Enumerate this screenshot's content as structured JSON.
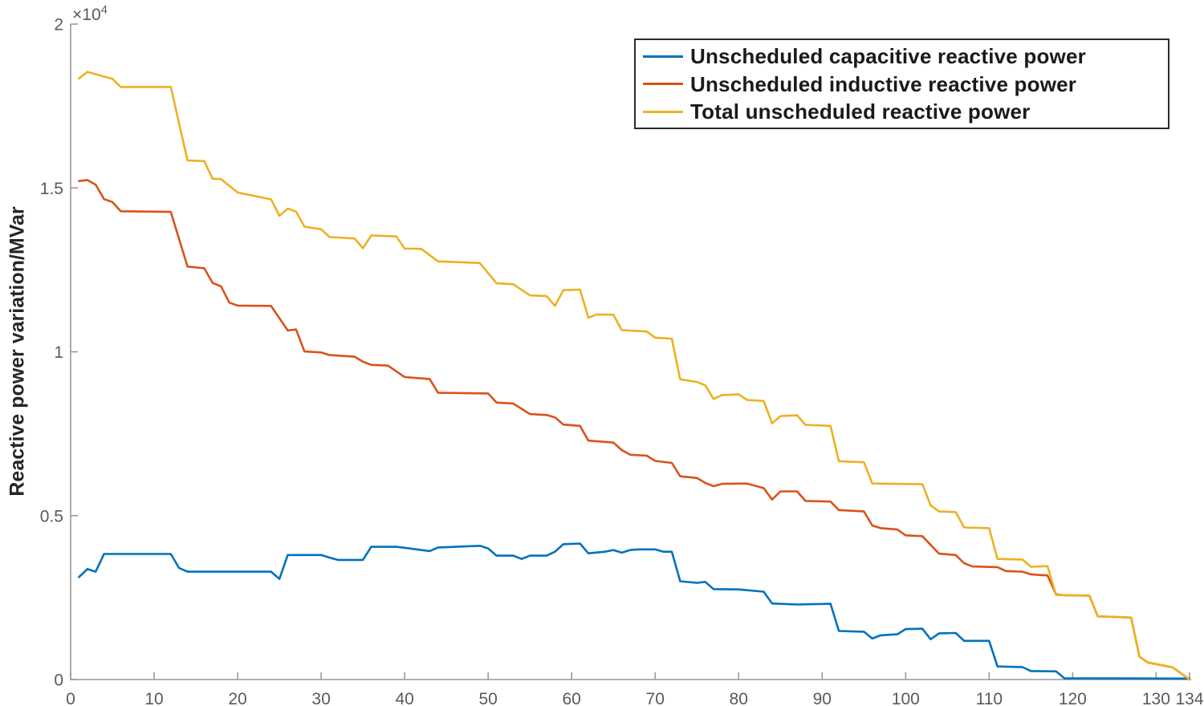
{
  "figure": {
    "background": "#ffffff",
    "axis_color": "#999999",
    "tick_label_color": "#5a5a5a"
  },
  "axes": {
    "x": {
      "min": 0,
      "max": 134,
      "ticks": [
        {
          "v": 0,
          "label": "0"
        },
        {
          "v": 10,
          "label": "10"
        },
        {
          "v": 20,
          "label": "20"
        },
        {
          "v": 30,
          "label": "30"
        },
        {
          "v": 40,
          "label": "40"
        },
        {
          "v": 50,
          "label": "50"
        },
        {
          "v": 60,
          "label": "60"
        },
        {
          "v": 70,
          "label": "70"
        },
        {
          "v": 80,
          "label": "80"
        },
        {
          "v": 90,
          "label": "90"
        },
        {
          "v": 100,
          "label": "100"
        },
        {
          "v": 110,
          "label": "110"
        },
        {
          "v": 120,
          "label": "120"
        },
        {
          "v": 130,
          "label": "130"
        },
        {
          "v": 134,
          "label": "134"
        }
      ]
    },
    "y": {
      "min": 0,
      "max": 20000,
      "ticks": [
        {
          "v": 0,
          "label": "0"
        },
        {
          "v": 5000,
          "label": "0.5"
        },
        {
          "v": 10000,
          "label": "1"
        },
        {
          "v": 15000,
          "label": "1.5"
        },
        {
          "v": 20000,
          "label": "2"
        }
      ],
      "exponent_base": "×10",
      "exponent_power": "4"
    }
  },
  "legend": {
    "position": "northeast-inside",
    "entries": [
      {
        "label": "Unscheduled capacitive reactive power",
        "color": "#0072BD"
      },
      {
        "label": "Unscheduled inductive reactive power",
        "color": "#D95319"
      },
      {
        "label": "Total unscheduled reactive power",
        "color": "#EDB120"
      }
    ]
  },
  "chart_data": {
    "type": "line",
    "title": "",
    "xlabel": "",
    "ylabel": "Reactive power variation/MVar",
    "y_unit": "MVar",
    "y_axis_display": "values divided by 10^4",
    "xlim": [
      0,
      134
    ],
    "ylim": [
      0,
      20000
    ],
    "grid": false,
    "legend_position": "northeast inside",
    "series": [
      {
        "name": "Unscheduled capacitive reactive power",
        "color": "#0072BD",
        "points": [
          [
            1,
            3125
          ],
          [
            2,
            3370
          ],
          [
            3,
            3290
          ],
          [
            4,
            3830
          ],
          [
            12,
            3830
          ],
          [
            13,
            3400
          ],
          [
            14,
            3290
          ],
          [
            24,
            3290
          ],
          [
            25,
            3070
          ],
          [
            26,
            3800
          ],
          [
            30,
            3800
          ],
          [
            31,
            3720
          ],
          [
            32,
            3650
          ],
          [
            35,
            3650
          ],
          [
            36,
            4050
          ],
          [
            39,
            4050
          ],
          [
            40,
            4020
          ],
          [
            43,
            3920
          ],
          [
            44,
            4030
          ],
          [
            49,
            4080
          ],
          [
            50,
            4000
          ],
          [
            51,
            3780
          ],
          [
            53,
            3780
          ],
          [
            54,
            3680
          ],
          [
            55,
            3780
          ],
          [
            57,
            3780
          ],
          [
            58,
            3900
          ],
          [
            59,
            4130
          ],
          [
            61,
            4150
          ],
          [
            62,
            3850
          ],
          [
            64,
            3900
          ],
          [
            65,
            3950
          ],
          [
            66,
            3870
          ],
          [
            67,
            3950
          ],
          [
            68,
            3970
          ],
          [
            70,
            3970
          ],
          [
            71,
            3900
          ],
          [
            72,
            3900
          ],
          [
            73,
            3000
          ],
          [
            75,
            2950
          ],
          [
            76,
            2980
          ],
          [
            77,
            2760
          ],
          [
            80,
            2750
          ],
          [
            83,
            2680
          ],
          [
            84,
            2320
          ],
          [
            87,
            2290
          ],
          [
            91,
            2310
          ],
          [
            92,
            1480
          ],
          [
            95,
            1460
          ],
          [
            96,
            1250
          ],
          [
            97,
            1350
          ],
          [
            99,
            1380
          ],
          [
            100,
            1540
          ],
          [
            102,
            1550
          ],
          [
            103,
            1230
          ],
          [
            104,
            1410
          ],
          [
            106,
            1420
          ],
          [
            107,
            1180
          ],
          [
            110,
            1180
          ],
          [
            111,
            400
          ],
          [
            114,
            380
          ],
          [
            115,
            260
          ],
          [
            118,
            250
          ],
          [
            119,
            40
          ],
          [
            134,
            30
          ]
        ]
      },
      {
        "name": "Unscheduled inductive reactive power",
        "color": "#D95319",
        "points": [
          [
            1,
            15210
          ],
          [
            2,
            15240
          ],
          [
            3,
            15100
          ],
          [
            4,
            14660
          ],
          [
            5,
            14570
          ],
          [
            6,
            14290
          ],
          [
            12,
            14270
          ],
          [
            14,
            12600
          ],
          [
            16,
            12550
          ],
          [
            17,
            12100
          ],
          [
            18,
            12000
          ],
          [
            19,
            11500
          ],
          [
            20,
            11410
          ],
          [
            24,
            11400
          ],
          [
            26,
            10650
          ],
          [
            27,
            10680
          ],
          [
            28,
            10010
          ],
          [
            30,
            9980
          ],
          [
            31,
            9900
          ],
          [
            34,
            9850
          ],
          [
            35,
            9700
          ],
          [
            36,
            9600
          ],
          [
            38,
            9580
          ],
          [
            40,
            9230
          ],
          [
            43,
            9170
          ],
          [
            44,
            8750
          ],
          [
            50,
            8730
          ],
          [
            51,
            8450
          ],
          [
            53,
            8420
          ],
          [
            55,
            8100
          ],
          [
            57,
            8070
          ],
          [
            58,
            8000
          ],
          [
            59,
            7780
          ],
          [
            61,
            7740
          ],
          [
            62,
            7290
          ],
          [
            65,
            7230
          ],
          [
            66,
            7000
          ],
          [
            67,
            6860
          ],
          [
            69,
            6830
          ],
          [
            70,
            6670
          ],
          [
            72,
            6610
          ],
          [
            73,
            6200
          ],
          [
            75,
            6150
          ],
          [
            76,
            6000
          ],
          [
            77,
            5900
          ],
          [
            78,
            5970
          ],
          [
            81,
            5980
          ],
          [
            83,
            5840
          ],
          [
            84,
            5490
          ],
          [
            85,
            5740
          ],
          [
            87,
            5740
          ],
          [
            88,
            5450
          ],
          [
            91,
            5430
          ],
          [
            92,
            5170
          ],
          [
            95,
            5130
          ],
          [
            96,
            4700
          ],
          [
            97,
            4620
          ],
          [
            99,
            4580
          ],
          [
            100,
            4400
          ],
          [
            102,
            4375
          ],
          [
            104,
            3840
          ],
          [
            106,
            3800
          ],
          [
            107,
            3550
          ],
          [
            108,
            3450
          ],
          [
            111,
            3430
          ],
          [
            112,
            3310
          ],
          [
            114,
            3290
          ],
          [
            115,
            3210
          ],
          [
            117,
            3175
          ],
          [
            118,
            2600
          ],
          [
            119,
            2570
          ],
          [
            122,
            2560
          ],
          [
            123,
            1930
          ],
          [
            127,
            1890
          ],
          [
            128,
            700
          ],
          [
            129,
            520
          ],
          [
            131,
            420
          ],
          [
            132,
            370
          ],
          [
            134,
            0
          ]
        ]
      },
      {
        "name": "Total unscheduled reactive power",
        "color": "#EDB120",
        "points": [
          [
            1,
            18340
          ],
          [
            2,
            18540
          ],
          [
            4,
            18400
          ],
          [
            5,
            18330
          ],
          [
            6,
            18080
          ],
          [
            12,
            18080
          ],
          [
            14,
            15840
          ],
          [
            16,
            15820
          ],
          [
            17,
            15280
          ],
          [
            18,
            15270
          ],
          [
            20,
            14860
          ],
          [
            24,
            14650
          ],
          [
            25,
            14150
          ],
          [
            26,
            14370
          ],
          [
            27,
            14280
          ],
          [
            28,
            13820
          ],
          [
            30,
            13740
          ],
          [
            31,
            13500
          ],
          [
            34,
            13460
          ],
          [
            35,
            13160
          ],
          [
            36,
            13550
          ],
          [
            39,
            13520
          ],
          [
            40,
            13150
          ],
          [
            42,
            13140
          ],
          [
            44,
            12760
          ],
          [
            49,
            12710
          ],
          [
            51,
            12090
          ],
          [
            53,
            12060
          ],
          [
            55,
            11720
          ],
          [
            57,
            11700
          ],
          [
            58,
            11400
          ],
          [
            59,
            11880
          ],
          [
            61,
            11900
          ],
          [
            62,
            11040
          ],
          [
            63,
            11140
          ],
          [
            65,
            11130
          ],
          [
            66,
            10660
          ],
          [
            69,
            10620
          ],
          [
            70,
            10430
          ],
          [
            72,
            10400
          ],
          [
            73,
            9160
          ],
          [
            75,
            9080
          ],
          [
            76,
            8980
          ],
          [
            77,
            8560
          ],
          [
            78,
            8680
          ],
          [
            80,
            8700
          ],
          [
            81,
            8530
          ],
          [
            83,
            8500
          ],
          [
            84,
            7820
          ],
          [
            85,
            8040
          ],
          [
            87,
            8060
          ],
          [
            88,
            7770
          ],
          [
            91,
            7740
          ],
          [
            92,
            6660
          ],
          [
            95,
            6630
          ],
          [
            96,
            5980
          ],
          [
            102,
            5960
          ],
          [
            103,
            5310
          ],
          [
            104,
            5130
          ],
          [
            106,
            5110
          ],
          [
            107,
            4640
          ],
          [
            110,
            4620
          ],
          [
            111,
            3680
          ],
          [
            114,
            3660
          ],
          [
            115,
            3440
          ],
          [
            117,
            3460
          ],
          [
            118,
            2580
          ],
          [
            122,
            2560
          ],
          [
            123,
            1930
          ],
          [
            127,
            1890
          ],
          [
            128,
            700
          ],
          [
            129,
            520
          ],
          [
            131,
            420
          ],
          [
            132,
            370
          ],
          [
            134,
            0
          ]
        ]
      }
    ]
  }
}
